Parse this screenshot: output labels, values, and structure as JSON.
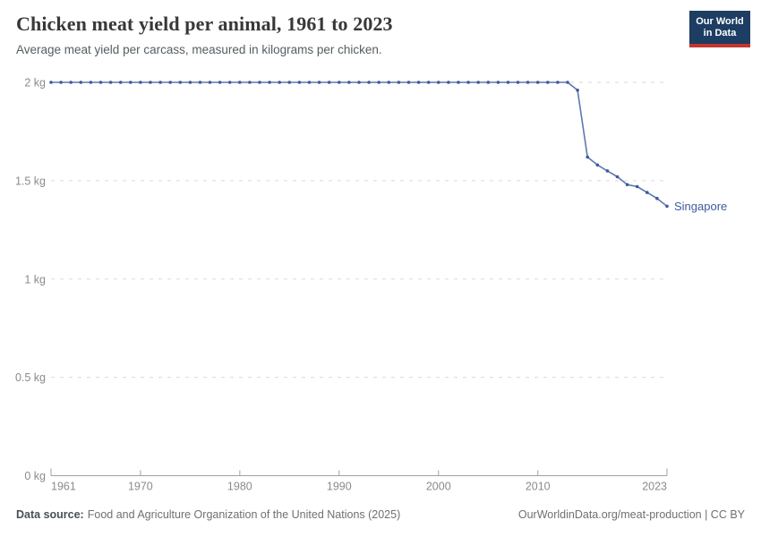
{
  "header": {
    "title": "Chicken meat yield per animal, 1961 to 2023",
    "subtitle": "Average meat yield per carcass, measured in kilograms per chicken.",
    "logo": {
      "line1": "Our World",
      "line2": "in Data",
      "bg_color": "#1d3d63",
      "accent_color": "#c2362e"
    }
  },
  "chart_data": {
    "type": "line",
    "title": "Chicken meat yield per animal, 1961 to 2023",
    "xlabel": "",
    "ylabel": "",
    "xlim": [
      1961,
      2023
    ],
    "ylim": [
      0,
      2
    ],
    "grid": "horizontal-dashed",
    "legend_position": "end-of-line-label",
    "x_ticks": [
      "1961",
      "1970",
      "1980",
      "1990",
      "2000",
      "2010",
      "2023"
    ],
    "y_ticks": {
      "values": [
        0,
        0.5,
        1,
        1.5,
        2
      ],
      "labels": [
        "0 kg",
        "0.5 kg",
        "1 kg",
        "1.5 kg",
        "2 kg"
      ]
    },
    "x": [
      1961,
      1962,
      1963,
      1964,
      1965,
      1966,
      1967,
      1968,
      1969,
      1970,
      1971,
      1972,
      1973,
      1974,
      1975,
      1976,
      1977,
      1978,
      1979,
      1980,
      1981,
      1982,
      1983,
      1984,
      1985,
      1986,
      1987,
      1988,
      1989,
      1990,
      1991,
      1992,
      1993,
      1994,
      1995,
      1996,
      1997,
      1998,
      1999,
      2000,
      2001,
      2002,
      2003,
      2004,
      2005,
      2006,
      2007,
      2008,
      2009,
      2010,
      2011,
      2012,
      2013,
      2014,
      2015,
      2016,
      2017,
      2018,
      2019,
      2020,
      2021,
      2022,
      2023
    ],
    "series": [
      {
        "name": "Singapore",
        "line_color": "#6077ae",
        "point_color": "#3c5a9e",
        "label_color": "#3d5c9e",
        "values": [
          2,
          2,
          2,
          2,
          2,
          2,
          2,
          2,
          2,
          2,
          2,
          2,
          2,
          2,
          2,
          2,
          2,
          2,
          2,
          2,
          2,
          2,
          2,
          2,
          2,
          2,
          2,
          2,
          2,
          2,
          2,
          2,
          2,
          2,
          2,
          2,
          2,
          2,
          2,
          2,
          2,
          2,
          2,
          2,
          2,
          2,
          2,
          2,
          2,
          2,
          2,
          2,
          2,
          1.96,
          1.62,
          1.58,
          1.55,
          1.52,
          1.48,
          1.47,
          1.44,
          1.41,
          1.37
        ]
      }
    ]
  },
  "footer": {
    "datasource_label": "Data source:",
    "datasource_text": "Food and Agriculture Organization of the United Nations (2025)",
    "credit": "OurWorldinData.org/meat-production | CC BY"
  }
}
